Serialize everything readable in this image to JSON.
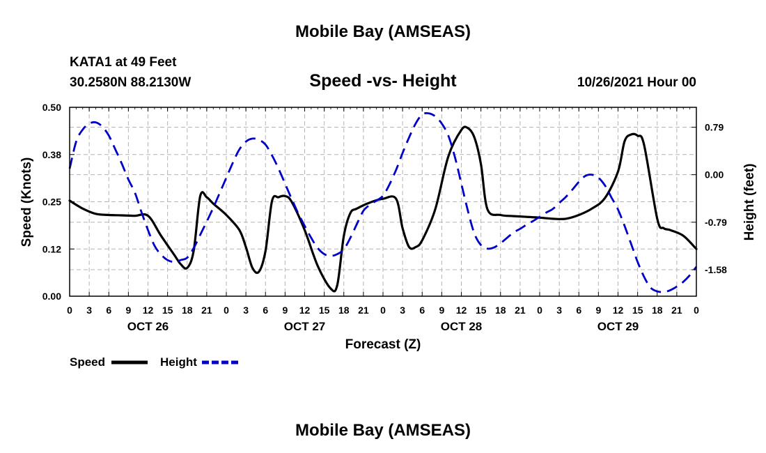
{
  "page": {
    "top_title": "Mobile Bay (AMSEAS)",
    "bottom_title": "Mobile Bay (AMSEAS)"
  },
  "chart_data": {
    "type": "line",
    "title": "Speed -vs- Height",
    "station": "KATA1 at 49 Feet",
    "location": "30.2580N  88.2130W",
    "date": "10/26/2021 Hour 00",
    "xlabel": "Forecast (Z)",
    "ylabel": "Speed (Knots)",
    "y2label": "Height (feet)",
    "x_range_hours": [
      0,
      96
    ],
    "ylim": [
      0,
      0.5
    ],
    "y2lim": [
      -2.02,
      1.12
    ],
    "y_ticks": [
      "0.00",
      "0.12",
      "0.25",
      "0.38",
      "0.50"
    ],
    "y_tick_values": [
      0,
      0.125,
      0.25,
      0.375,
      0.5
    ],
    "y2_ticks": [
      "0.79",
      "0.00",
      "-0.79",
      "-1.58"
    ],
    "y2_tick_values": [
      0.79,
      0,
      -0.79,
      -1.58
    ],
    "x_ticks": [
      "0",
      "3",
      "6",
      "9",
      "12",
      "15",
      "18",
      "21",
      "0",
      "3",
      "6",
      "9",
      "12",
      "15",
      "18",
      "21",
      "0",
      "3",
      "6",
      "9",
      "12",
      "15",
      "18",
      "21",
      "0",
      "3",
      "6",
      "9",
      "12",
      "15",
      "18",
      "21",
      "0"
    ],
    "x_tick_hours": [
      0,
      3,
      6,
      9,
      12,
      15,
      18,
      21,
      24,
      27,
      30,
      33,
      36,
      39,
      42,
      45,
      48,
      51,
      54,
      57,
      60,
      63,
      66,
      69,
      72,
      75,
      78,
      81,
      84,
      87,
      90,
      93,
      96
    ],
    "date_labels": [
      "OCT 26",
      "OCT 27",
      "OCT 28",
      "OCT 29"
    ],
    "date_label_hours": [
      12,
      36,
      60,
      84
    ],
    "grid": true,
    "legend": "bottom-left",
    "series": [
      {
        "name": "Speed",
        "color": "#000000",
        "style": "solid",
        "axis": "left",
        "x": [
          0,
          2,
          4,
          6,
          8,
          10,
          12,
          14,
          16,
          17,
          18,
          19,
          20,
          21,
          22,
          24,
          26,
          27,
          28,
          29,
          30,
          31,
          32,
          33,
          34,
          36,
          38,
          40,
          41,
          42,
          43,
          44,
          46,
          48,
          50,
          51,
          52,
          53,
          54,
          56,
          58,
          60,
          61,
          62,
          63,
          64,
          66,
          68,
          70,
          72,
          74,
          76,
          78,
          80,
          82,
          84,
          85,
          86,
          87,
          88,
          90,
          91,
          92,
          94,
          96
        ],
        "y": [
          0.253,
          0.232,
          0.218,
          0.215,
          0.214,
          0.213,
          0.213,
          0.16,
          0.11,
          0.085,
          0.075,
          0.12,
          0.265,
          0.262,
          0.245,
          0.215,
          0.175,
          0.13,
          0.075,
          0.065,
          0.12,
          0.252,
          0.262,
          0.265,
          0.25,
          0.175,
          0.08,
          0.02,
          0.03,
          0.16,
          0.22,
          0.232,
          0.248,
          0.258,
          0.258,
          0.18,
          0.13,
          0.13,
          0.148,
          0.23,
          0.37,
          0.44,
          0.445,
          0.42,
          0.35,
          0.23,
          0.215,
          0.212,
          0.21,
          0.208,
          0.205,
          0.205,
          0.215,
          0.232,
          0.26,
          0.33,
          0.41,
          0.428,
          0.425,
          0.4,
          0.205,
          0.18,
          0.175,
          0.16,
          0.125
        ]
      },
      {
        "name": "Height",
        "color": "#0000c8",
        "style": "dashed",
        "axis": "right",
        "x": [
          0,
          1,
          2,
          3,
          4,
          5,
          6,
          7,
          8,
          9,
          10,
          11,
          12,
          13,
          14,
          15,
          16,
          17,
          18,
          19,
          20,
          21,
          22,
          23,
          24,
          25,
          26,
          27,
          28,
          29,
          30,
          31,
          32,
          33,
          34,
          35,
          36,
          37,
          38,
          39,
          40,
          41,
          42,
          43,
          44,
          45,
          46,
          47,
          48,
          49,
          50,
          51,
          52,
          53,
          54,
          55,
          56,
          57,
          58,
          59,
          60,
          61,
          62,
          63,
          64,
          65,
          66,
          67,
          68,
          69,
          70,
          71,
          72,
          73,
          74,
          75,
          76,
          77,
          78,
          79,
          80,
          81,
          82,
          83,
          84,
          85,
          86,
          87,
          88,
          89,
          90,
          91,
          92,
          93,
          94,
          95,
          96
        ],
        "y": [
          0.1,
          0.55,
          0.75,
          0.85,
          0.87,
          0.8,
          0.65,
          0.42,
          0.18,
          -0.08,
          -0.3,
          -0.62,
          -0.92,
          -1.18,
          -1.33,
          -1.42,
          -1.45,
          -1.42,
          -1.38,
          -1.22,
          -1.0,
          -0.78,
          -0.55,
          -0.3,
          -0.05,
          0.2,
          0.42,
          0.55,
          0.6,
          0.58,
          0.5,
          0.32,
          0.1,
          -0.15,
          -0.4,
          -0.64,
          -0.85,
          -1.05,
          -1.22,
          -1.32,
          -1.35,
          -1.32,
          -1.24,
          -1.05,
          -0.82,
          -0.6,
          -0.5,
          -0.43,
          -0.35,
          -0.16,
          0.08,
          0.36,
          0.62,
          0.85,
          1.0,
          1.02,
          0.97,
          0.85,
          0.65,
          0.3,
          -0.15,
          -0.6,
          -0.98,
          -1.17,
          -1.23,
          -1.21,
          -1.14,
          -1.05,
          -0.96,
          -0.9,
          -0.83,
          -0.77,
          -0.7,
          -0.63,
          -0.57,
          -0.47,
          -0.37,
          -0.25,
          -0.12,
          -0.02,
          0.0,
          -0.05,
          -0.18,
          -0.38,
          -0.58,
          -0.85,
          -1.15,
          -1.45,
          -1.7,
          -1.88,
          -1.94,
          -1.95,
          -1.92,
          -1.86,
          -1.78,
          -1.67,
          -1.53
        ]
      }
    ]
  }
}
